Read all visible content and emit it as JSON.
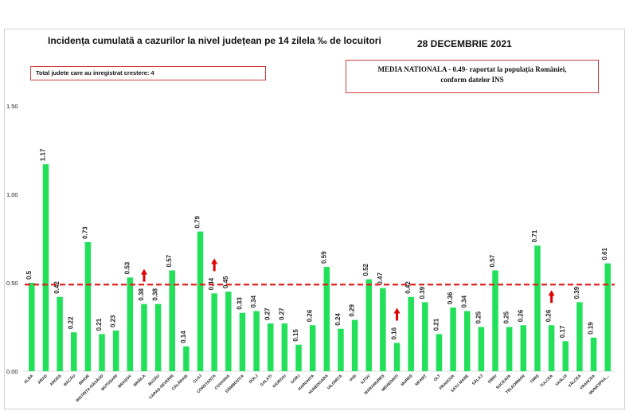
{
  "header": {
    "title": "Incidența cumulată a cazurilor la nivel județean pe 14 zilela ‰ de locuitori",
    "date": "28 DECEMBRIE 2021"
  },
  "info_left": "Total judete care au inregistrat crestere: 4",
  "info_right": {
    "line1": "MEDIA NATIONALA - 0.49- raportat la populația României,",
    "line2": "conform datelor INS"
  },
  "colors": {
    "bar": "#22e05a",
    "reference_line": "#e02020",
    "arrow": "#e00000"
  },
  "chart_data": {
    "type": "bar",
    "title": "Incidența cumulată a cazurilor la nivel județean pe 14 zilela ‰ de locuitori",
    "xlabel": "",
    "ylabel": "",
    "ylim": [
      0,
      1.5
    ],
    "yticks": [
      "0.00",
      "0.50",
      "1.00",
      "1.50"
    ],
    "reference_line": {
      "value": 0.49,
      "label": "MEDIA NATIONALA"
    },
    "categories": [
      "ALBA",
      "ARAD",
      "ARGEȘ",
      "BACĂU",
      "BIHOR",
      "BISTRIȚA-NĂSĂUD",
      "BOTOȘANI",
      "BRAȘOV",
      "BRĂILA",
      "BUZĂU",
      "CARAȘ-SEVERIN",
      "CĂLĂRAȘI",
      "CLUJ",
      "CONSTANȚA",
      "COVASNA",
      "DÂMBOVIȚA",
      "DOLJ",
      "GALAȚI",
      "GIURGIU",
      "GORJ",
      "HARGHITA",
      "HUNEDOARA",
      "IALOMIȚA",
      "IAȘI",
      "ILFOV",
      "MARAMUREȘ",
      "MEHEDINȚI",
      "MUREȘ",
      "NEAMȚ",
      "OLT",
      "PRAHOVA",
      "SATU MARE",
      "SĂLAJ",
      "SIBIU",
      "SUCEAVA",
      "TELEORMAN",
      "TIMIȘ",
      "TULCEA",
      "VASLUI",
      "VÂLCEA",
      "VRANCEA",
      "MUNICIPIUL..."
    ],
    "values": [
      0.5,
      1.17,
      0.42,
      0.22,
      0.73,
      0.21,
      0.23,
      0.53,
      0.38,
      0.38,
      0.57,
      0.14,
      0.79,
      0.44,
      0.45,
      0.33,
      0.34,
      0.27,
      0.27,
      0.15,
      0.26,
      0.59,
      0.24,
      0.29,
      0.52,
      0.47,
      0.16,
      0.42,
      0.39,
      0.21,
      0.36,
      0.34,
      0.25,
      0.57,
      0.25,
      0.26,
      0.71,
      0.26,
      0.17,
      0.39,
      0.19,
      0.61
    ],
    "value_labels": [
      "0.5",
      "1.17",
      "0.42",
      "0.22",
      "0.73",
      "0.21",
      "0.23",
      "0.53",
      "0.38",
      "0.38",
      "0.57",
      "0.14",
      "0.79",
      "0.44",
      "0.45",
      "0.33",
      "0.34",
      "0.27",
      "0.27",
      "0.15",
      "0.26",
      "0.59",
      "0.24",
      "0.29",
      "0.52",
      "0.47",
      "0.16",
      "0.42",
      "0.39",
      "0.21",
      "0.36",
      "0.34",
      "0.25",
      "0.57",
      "0.25",
      "0.26",
      "0.71",
      "0.26",
      "0.17",
      "0.39",
      "0.19",
      "0.61"
    ],
    "increase_markers": [
      "BRĂILA",
      "CONSTANȚA",
      "MEHEDINȚI",
      "TULCEA"
    ]
  }
}
